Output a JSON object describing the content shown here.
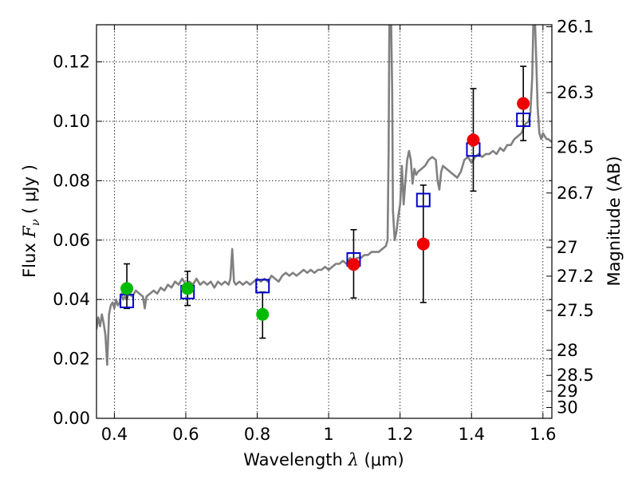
{
  "chart_data": {
    "type": "scatter",
    "xlabel": {
      "prefix": "Wavelength  ",
      "symbol": "λ",
      "suffix": " (μm)"
    },
    "ylabel": {
      "prefix": "Flux  ",
      "symbol": "F",
      "subscript": "ν",
      "suffix": "  ( μJy )"
    },
    "ylabel_right": "Magnitude (AB)",
    "xlim": [
      0.35,
      1.625
    ],
    "ylim": [
      0.0,
      0.1325
    ],
    "grid": true,
    "x_ticks": [
      {
        "value": 0.4,
        "label": "0.4"
      },
      {
        "value": 0.6,
        "label": "0.6"
      },
      {
        "value": 0.8,
        "label": "0.8"
      },
      {
        "value": 1.0,
        "label": "1"
      },
      {
        "value": 1.2,
        "label": "1.2"
      },
      {
        "value": 1.4,
        "label": "1.4"
      },
      {
        "value": 1.6,
        "label": "1.6"
      }
    ],
    "y_ticks": [
      {
        "value": 0.0,
        "label": "0.00"
      },
      {
        "value": 0.02,
        "label": "0.02"
      },
      {
        "value": 0.04,
        "label": "0.04"
      },
      {
        "value": 0.06,
        "label": "0.06"
      },
      {
        "value": 0.08,
        "label": "0.08"
      },
      {
        "value": 0.1,
        "label": "0.10"
      },
      {
        "value": 0.12,
        "label": "0.12"
      }
    ],
    "magnitude_ticks": [
      {
        "mag": 26.1,
        "label": "26.1"
      },
      {
        "mag": 26.3,
        "label": "26.3"
      },
      {
        "mag": 26.5,
        "label": "26.5"
      },
      {
        "mag": 26.7,
        "label": "26.7"
      },
      {
        "mag": 27.0,
        "label": "27"
      },
      {
        "mag": 27.2,
        "label": "27.2"
      },
      {
        "mag": 27.5,
        "label": "27.5"
      },
      {
        "mag": 28.0,
        "label": "28"
      },
      {
        "mag": 28.5,
        "label": "28.5"
      },
      {
        "mag": 29.0,
        "label": "29"
      },
      {
        "mag": 30.0,
        "label": "30"
      }
    ],
    "series": [
      {
        "kind": "line",
        "color": "#808080",
        "points": [
          [
            0.35,
            0.03
          ],
          [
            0.355,
            0.034
          ],
          [
            0.36,
            0.031
          ],
          [
            0.365,
            0.035
          ],
          [
            0.37,
            0.032
          ],
          [
            0.375,
            0.028
          ],
          [
            0.38,
            0.018
          ],
          [
            0.385,
            0.035
          ],
          [
            0.39,
            0.038
          ],
          [
            0.395,
            0.039
          ],
          [
            0.4,
            0.037
          ],
          [
            0.405,
            0.04
          ],
          [
            0.41,
            0.038
          ],
          [
            0.415,
            0.039
          ],
          [
            0.42,
            0.042
          ],
          [
            0.425,
            0.04
          ],
          [
            0.43,
            0.041
          ],
          [
            0.435,
            0.04
          ],
          [
            0.44,
            0.042
          ],
          [
            0.45,
            0.041
          ],
          [
            0.46,
            0.043
          ],
          [
            0.47,
            0.042
          ],
          [
            0.48,
            0.041
          ],
          [
            0.485,
            0.037
          ],
          [
            0.49,
            0.041
          ],
          [
            0.5,
            0.042
          ],
          [
            0.51,
            0.043
          ],
          [
            0.52,
            0.042
          ],
          [
            0.53,
            0.044
          ],
          [
            0.54,
            0.043
          ],
          [
            0.55,
            0.045
          ],
          [
            0.56,
            0.044
          ],
          [
            0.57,
            0.046
          ],
          [
            0.58,
            0.045
          ],
          [
            0.59,
            0.047
          ],
          [
            0.6,
            0.045
          ],
          [
            0.61,
            0.046
          ],
          [
            0.62,
            0.045
          ],
          [
            0.63,
            0.047
          ],
          [
            0.64,
            0.045
          ],
          [
            0.65,
            0.046
          ],
          [
            0.66,
            0.045
          ],
          [
            0.67,
            0.046
          ],
          [
            0.68,
            0.044
          ],
          [
            0.69,
            0.046
          ],
          [
            0.7,
            0.045
          ],
          [
            0.71,
            0.046
          ],
          [
            0.72,
            0.045
          ],
          [
            0.725,
            0.047
          ],
          [
            0.73,
            0.057
          ],
          [
            0.735,
            0.046
          ],
          [
            0.74,
            0.045
          ],
          [
            0.75,
            0.046
          ],
          [
            0.76,
            0.045
          ],
          [
            0.77,
            0.046
          ],
          [
            0.78,
            0.045
          ],
          [
            0.79,
            0.046
          ],
          [
            0.8,
            0.047
          ],
          [
            0.81,
            0.046
          ],
          [
            0.82,
            0.047
          ],
          [
            0.83,
            0.046
          ],
          [
            0.84,
            0.048
          ],
          [
            0.85,
            0.047
          ],
          [
            0.86,
            0.046
          ],
          [
            0.87,
            0.048
          ],
          [
            0.88,
            0.049
          ],
          [
            0.89,
            0.048
          ],
          [
            0.9,
            0.049
          ],
          [
            0.91,
            0.048
          ],
          [
            0.92,
            0.049
          ],
          [
            0.93,
            0.05
          ],
          [
            0.94,
            0.049
          ],
          [
            0.95,
            0.05
          ],
          [
            0.96,
            0.049
          ],
          [
            0.97,
            0.05
          ],
          [
            0.98,
            0.05
          ],
          [
            0.99,
            0.051
          ],
          [
            1.0,
            0.05
          ],
          [
            1.01,
            0.051
          ],
          [
            1.02,
            0.052
          ],
          [
            1.03,
            0.052
          ],
          [
            1.04,
            0.053
          ],
          [
            1.05,
            0.052
          ],
          [
            1.06,
            0.054
          ],
          [
            1.07,
            0.053
          ],
          [
            1.08,
            0.054
          ],
          [
            1.09,
            0.054
          ],
          [
            1.1,
            0.055
          ],
          [
            1.11,
            0.055
          ],
          [
            1.12,
            0.056
          ],
          [
            1.13,
            0.056
          ],
          [
            1.14,
            0.056
          ],
          [
            1.15,
            0.057
          ],
          [
            1.16,
            0.058
          ],
          [
            1.165,
            0.06
          ],
          [
            1.168,
            0.09
          ],
          [
            1.17,
            0.1325
          ],
          [
            1.175,
            0.1325
          ],
          [
            1.178,
            0.11
          ],
          [
            1.18,
            0.07
          ],
          [
            1.185,
            0.06
          ],
          [
            1.19,
            0.063
          ],
          [
            1.195,
            0.068
          ],
          [
            1.2,
            0.072
          ],
          [
            1.203,
            0.078
          ],
          [
            1.205,
            0.085
          ],
          [
            1.208,
            0.078
          ],
          [
            1.21,
            0.072
          ],
          [
            1.215,
            0.08
          ],
          [
            1.22,
            0.087
          ],
          [
            1.225,
            0.09
          ],
          [
            1.23,
            0.087
          ],
          [
            1.235,
            0.079
          ],
          [
            1.24,
            0.084
          ],
          [
            1.245,
            0.082
          ],
          [
            1.25,
            0.083
          ],
          [
            1.26,
            0.084
          ],
          [
            1.27,
            0.085
          ],
          [
            1.28,
            0.087
          ],
          [
            1.29,
            0.088
          ],
          [
            1.3,
            0.087
          ],
          [
            1.305,
            0.08
          ],
          [
            1.31,
            0.077
          ],
          [
            1.315,
            0.083
          ],
          [
            1.32,
            0.085
          ],
          [
            1.33,
            0.084
          ],
          [
            1.34,
            0.083
          ],
          [
            1.35,
            0.082
          ],
          [
            1.36,
            0.081
          ],
          [
            1.37,
            0.083
          ],
          [
            1.38,
            0.087
          ],
          [
            1.39,
            0.088
          ],
          [
            1.4,
            0.086
          ],
          [
            1.41,
            0.088
          ],
          [
            1.42,
            0.089
          ],
          [
            1.43,
            0.088
          ],
          [
            1.44,
            0.089
          ],
          [
            1.45,
            0.089
          ],
          [
            1.46,
            0.09
          ],
          [
            1.47,
            0.089
          ],
          [
            1.48,
            0.091
          ],
          [
            1.49,
            0.09
          ],
          [
            1.5,
            0.092
          ],
          [
            1.51,
            0.092
          ],
          [
            1.52,
            0.094
          ],
          [
            1.53,
            0.095
          ],
          [
            1.54,
            0.096
          ],
          [
            1.55,
            0.099
          ],
          [
            1.56,
            0.1
          ],
          [
            1.565,
            0.103
          ],
          [
            1.57,
            0.115
          ],
          [
            1.573,
            0.1325
          ],
          [
            1.578,
            0.1325
          ],
          [
            1.582,
            0.118
          ],
          [
            1.585,
            0.105
          ],
          [
            1.59,
            0.096
          ],
          [
            1.595,
            0.094
          ],
          [
            1.6,
            0.096
          ],
          [
            1.605,
            0.095
          ],
          [
            1.61,
            0.094
          ],
          [
            1.615,
            0.094
          ],
          [
            1.625,
            0.093
          ]
        ]
      },
      {
        "kind": "squares",
        "color": "#0000cc",
        "points": [
          [
            0.435,
            0.0395
          ],
          [
            0.605,
            0.0425
          ],
          [
            0.815,
            0.0445
          ],
          [
            1.07,
            0.0535
          ],
          [
            1.265,
            0.0735
          ],
          [
            1.405,
            0.0905
          ],
          [
            1.545,
            0.1005
          ]
        ]
      },
      {
        "kind": "circles",
        "color": "#00bb00",
        "points": [
          {
            "x": 0.435,
            "y": 0.0437,
            "ylo": 0.037,
            "yhi": 0.052
          },
          {
            "x": 0.605,
            "y": 0.0437,
            "ylo": 0.038,
            "yhi": 0.0495
          },
          {
            "x": 0.815,
            "y": 0.035,
            "ylo": 0.027,
            "yhi": 0.0425
          }
        ]
      },
      {
        "kind": "circles",
        "color": "#ee0000",
        "points": [
          {
            "x": 1.07,
            "y": 0.0518,
            "ylo": 0.0405,
            "yhi": 0.0635
          },
          {
            "x": 1.265,
            "y": 0.0587,
            "ylo": 0.039,
            "yhi": 0.0785
          },
          {
            "x": 1.405,
            "y": 0.0937,
            "ylo": 0.0765,
            "yhi": 0.111
          },
          {
            "x": 1.545,
            "y": 0.106,
            "ylo": 0.0935,
            "yhi": 0.1185
          }
        ]
      }
    ]
  }
}
